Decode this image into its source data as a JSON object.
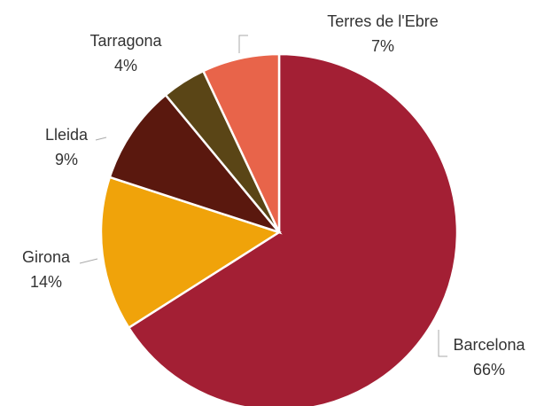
{
  "chart_data": {
    "type": "pie",
    "categories": [
      "Barcelona",
      "Girona",
      "Lleida",
      "Tarragona",
      "Terres de l'Ebre"
    ],
    "values": [
      66,
      14,
      9,
      4,
      7
    ],
    "value_labels": [
      "66%",
      "14%",
      "9%",
      "4%",
      "7%"
    ],
    "colors": [
      "#a31f34",
      "#f0a30a",
      "#5a180e",
      "#5a4516",
      "#e8644a"
    ]
  }
}
